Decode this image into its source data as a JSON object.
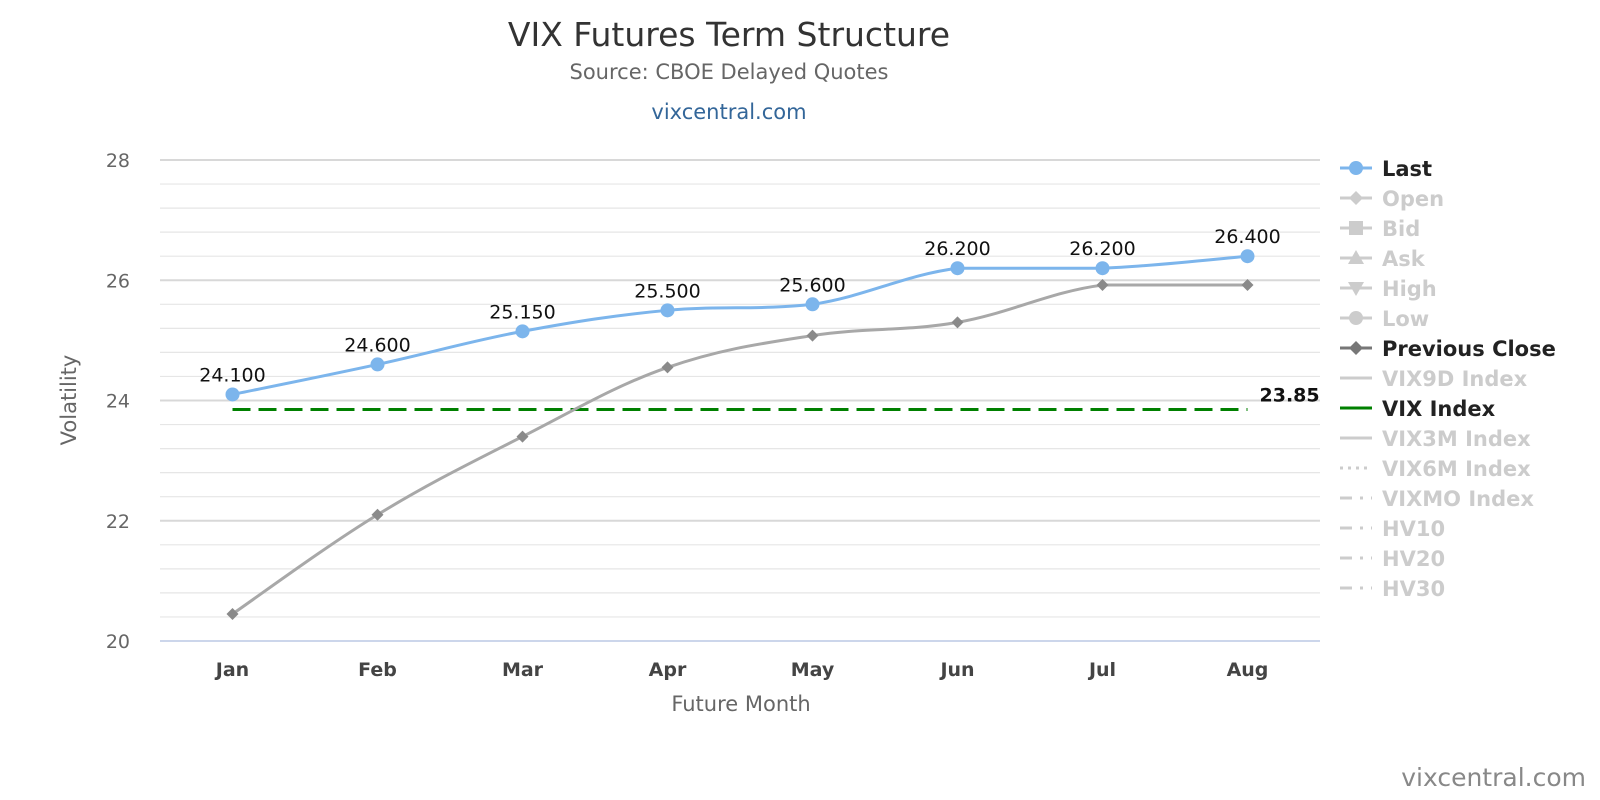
{
  "chart_data": {
    "type": "line",
    "title": "VIX Futures Term Structure",
    "subtitle": "Source: CBOE Delayed Quotes",
    "link_text": "vixcentral.com",
    "credit": "vixcentral.com",
    "xlabel": "Future Month",
    "ylabel": "Volatility",
    "ylim": [
      20,
      28
    ],
    "yticks": [
      "20",
      "22",
      "24",
      "26",
      "28"
    ],
    "ytick_values": [
      20,
      22,
      24,
      26,
      28
    ],
    "categories": [
      "Jan",
      "Feb",
      "Mar",
      "Apr",
      "May",
      "Jun",
      "Jul",
      "Aug"
    ],
    "grid": true,
    "legend_position": "right",
    "series": [
      {
        "name": "Last",
        "values": [
          24.1,
          24.6,
          25.15,
          25.5,
          25.6,
          26.2,
          26.2,
          26.4
        ],
        "labels": [
          "24.100",
          "24.600",
          "25.150",
          "25.500",
          "25.600",
          "26.200",
          "26.200",
          "26.400"
        ],
        "color": "#7cb5ec",
        "marker": "circle"
      },
      {
        "name": "Previous Close",
        "values": [
          20.45,
          22.1,
          23.4,
          24.55,
          25.08,
          25.3,
          25.92,
          25.92
        ],
        "color": "#a8a8a8",
        "marker": "diamond"
      },
      {
        "name": "VIX Index",
        "value": 23.85,
        "label": "23.85",
        "color": "#008000",
        "dash": "dashed"
      }
    ],
    "legend": [
      {
        "name": "Last",
        "symbol": "circle",
        "active": true,
        "color": "#7cb5ec"
      },
      {
        "name": "Open",
        "symbol": "diamond",
        "active": false,
        "color": "#cccccc"
      },
      {
        "name": "Bid",
        "symbol": "square",
        "active": false,
        "color": "#cccccc"
      },
      {
        "name": "Ask",
        "symbol": "triangle",
        "active": false,
        "color": "#cccccc"
      },
      {
        "name": "High",
        "symbol": "triangle-down",
        "active": false,
        "color": "#cccccc"
      },
      {
        "name": "Low",
        "symbol": "circle",
        "active": false,
        "color": "#cccccc"
      },
      {
        "name": "Previous Close",
        "symbol": "diamond",
        "active": true,
        "color": "#777777"
      },
      {
        "name": "VIX9D Index",
        "symbol": "solid",
        "active": false,
        "color": "#cccccc"
      },
      {
        "name": "VIX Index",
        "symbol": "solid",
        "active": true,
        "color": "#008000"
      },
      {
        "name": "VIX3M Index",
        "symbol": "solid",
        "active": false,
        "color": "#cccccc"
      },
      {
        "name": "VIX6M Index",
        "symbol": "dotted",
        "active": false,
        "color": "#cccccc"
      },
      {
        "name": "VIXMO Index",
        "symbol": "dashdot",
        "active": false,
        "color": "#cccccc"
      },
      {
        "name": "HV10",
        "symbol": "dashdot",
        "active": false,
        "color": "#cccccc"
      },
      {
        "name": "HV20",
        "symbol": "dashdot",
        "active": false,
        "color": "#cccccc"
      },
      {
        "name": "HV30",
        "symbol": "dashdot",
        "active": false,
        "color": "#cccccc"
      }
    ]
  }
}
